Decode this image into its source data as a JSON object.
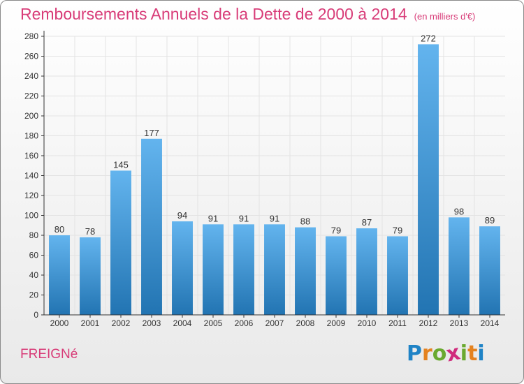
{
  "title": "Remboursements Annuels de la Dette de 2000 à 2014",
  "unit_note": "(en milliers d'€)",
  "commune": "FREIGNé",
  "logo": {
    "letters": [
      "P",
      "r",
      "o",
      "x",
      "i",
      "t",
      "i"
    ],
    "colors": [
      "#1f83c6",
      "#e4821f",
      "#6aa92f",
      "#d02b7c",
      "#6aa92f",
      "#e4821f",
      "#1f83c6"
    ]
  },
  "chart_data": {
    "type": "bar",
    "title": "Remboursements Annuels de la Dette de 2000 à 2014",
    "categories": [
      "2000",
      "2001",
      "2002",
      "2003",
      "2004",
      "2005",
      "2006",
      "2007",
      "2008",
      "2009",
      "2010",
      "2011",
      "2012",
      "2013",
      "2014"
    ],
    "values": [
      80,
      78,
      145,
      177,
      94,
      91,
      91,
      91,
      88,
      79,
      87,
      79,
      272,
      98,
      89
    ],
    "ylim": [
      0,
      280
    ],
    "yticks": [
      0,
      20,
      40,
      60,
      80,
      100,
      120,
      140,
      160,
      180,
      200,
      220,
      240,
      260,
      280
    ],
    "grid": true,
    "colors": {
      "bar_light": "#63b4ee",
      "bar_dark": "#2274b2",
      "grid": "#e3e3e3",
      "axis": "#333333"
    }
  }
}
